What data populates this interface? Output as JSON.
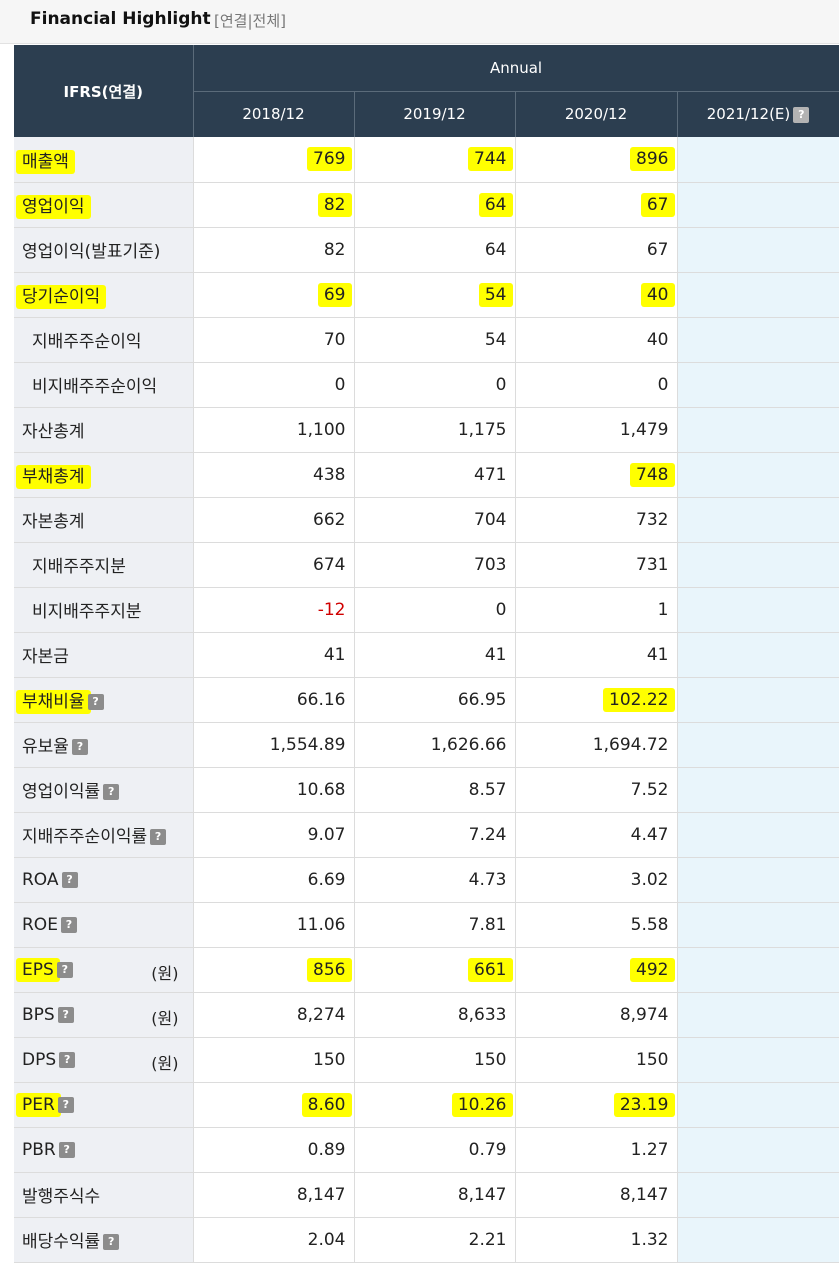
{
  "header": {
    "title": "Financial Highlight",
    "bracket_open": "[",
    "link_consolidated": "연결",
    "separator": "|",
    "link_all": "전체",
    "bracket_close": "]"
  },
  "table": {
    "corner_label": "IFRS(연결)",
    "group_label": "Annual",
    "periods": [
      "2018/12",
      "2019/12",
      "2020/12",
      "2021/12(E)"
    ],
    "help_glyph": "?",
    "unit_won": "(원)",
    "rows": [
      {
        "label": "매출액",
        "values": [
          "769",
          "744",
          "896",
          ""
        ]
      },
      {
        "label": "영업이익",
        "values": [
          "82",
          "64",
          "67",
          ""
        ]
      },
      {
        "label": "영업이익(발표기준)",
        "values": [
          "82",
          "64",
          "67",
          ""
        ]
      },
      {
        "label": "당기순이익",
        "values": [
          "69",
          "54",
          "40",
          ""
        ]
      },
      {
        "label": "지배주주순이익",
        "values": [
          "70",
          "54",
          "40",
          ""
        ]
      },
      {
        "label": "비지배주주순이익",
        "values": [
          "0",
          "0",
          "0",
          ""
        ]
      },
      {
        "label": "자산총계",
        "values": [
          "1,100",
          "1,175",
          "1,479",
          ""
        ]
      },
      {
        "label": "부채총계",
        "values": [
          "438",
          "471",
          "748",
          ""
        ]
      },
      {
        "label": "자본총계",
        "values": [
          "662",
          "704",
          "732",
          ""
        ]
      },
      {
        "label": "지배주주지분",
        "values": [
          "674",
          "703",
          "731",
          ""
        ]
      },
      {
        "label": "비지배주주지분",
        "values": [
          "-12",
          "0",
          "1",
          ""
        ]
      },
      {
        "label": "자본금",
        "values": [
          "41",
          "41",
          "41",
          ""
        ]
      },
      {
        "label": "부채비율",
        "values": [
          "66.16",
          "66.95",
          "102.22",
          ""
        ]
      },
      {
        "label": "유보율",
        "values": [
          "1,554.89",
          "1,626.66",
          "1,694.72",
          ""
        ]
      },
      {
        "label": "영업이익률",
        "values": [
          "10.68",
          "8.57",
          "7.52",
          ""
        ]
      },
      {
        "label": "지배주주순이익률",
        "values": [
          "9.07",
          "7.24",
          "4.47",
          ""
        ]
      },
      {
        "label": "ROA",
        "values": [
          "6.69",
          "4.73",
          "3.02",
          ""
        ]
      },
      {
        "label": "ROE",
        "values": [
          "11.06",
          "7.81",
          "5.58",
          ""
        ]
      },
      {
        "label": "EPS",
        "values": [
          "856",
          "661",
          "492",
          ""
        ]
      },
      {
        "label": "BPS",
        "values": [
          "8,274",
          "8,633",
          "8,974",
          ""
        ]
      },
      {
        "label": "DPS",
        "values": [
          "150",
          "150",
          "150",
          ""
        ]
      },
      {
        "label": "PER",
        "values": [
          "8.60",
          "10.26",
          "23.19",
          ""
        ]
      },
      {
        "label": "PBR",
        "values": [
          "0.89",
          "0.79",
          "1.27",
          ""
        ]
      },
      {
        "label": "발행주식수",
        "values": [
          "8,147",
          "8,147",
          "8,147",
          ""
        ]
      },
      {
        "label": "배당수익률",
        "values": [
          "2.04",
          "2.21",
          "1.32",
          ""
        ]
      }
    ]
  },
  "colors": {
    "header_bg": "#2c3e50",
    "label_bg": "#eef0f4",
    "estimate_bg": "#e9f5fb",
    "highlight": "#ffff00",
    "negative": "#d00000"
  }
}
